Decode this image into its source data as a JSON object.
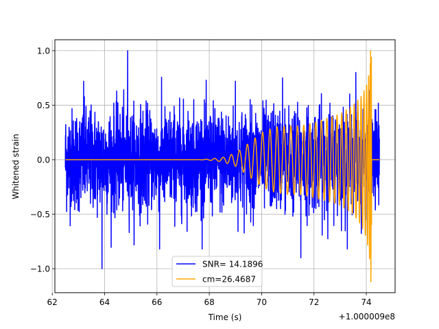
{
  "chart_data": {
    "type": "line",
    "xlabel": "Time (s)",
    "ylabel": "Whitened strain",
    "offset_label": "+1.000009e8",
    "xlim": [
      62.1,
      75.1
    ],
    "ylim": [
      -1.22,
      1.1
    ],
    "x_ticks": [
      62,
      64,
      66,
      68,
      70,
      72,
      74
    ],
    "x_tick_labels": [
      "62",
      "64",
      "66",
      "68",
      "70",
      "72",
      "74"
    ],
    "y_ticks": [
      -1.0,
      -0.5,
      0.0,
      0.5,
      1.0
    ],
    "y_tick_labels": [
      "−1.0",
      "−0.5",
      "0.0",
      "0.5",
      "1.0"
    ],
    "grid": true,
    "legend_position": "lower-center",
    "series": [
      {
        "name": "SNR= 14.1896",
        "color": "#0000ff",
        "x_range": [
          62.5,
          74.5
        ],
        "typical_amplitude": 0.55,
        "peak_max": 1.0,
        "peak_min": -1.0,
        "style": "whitened-noise"
      },
      {
        "name": "cm=26.4687",
        "color": "#ffa500",
        "x_range": [
          62.5,
          74.5
        ],
        "merger_time": 74.2,
        "peak_max": 1.0,
        "peak_min": -1.12,
        "envelope": {
          "x": [
            62.5,
            67.5,
            68.0,
            68.5,
            69.0,
            69.5,
            70.0,
            70.5,
            71.0,
            71.5,
            72.0,
            72.5,
            73.0,
            73.5,
            73.8,
            74.0,
            74.1,
            74.15,
            74.2
          ],
          "upper": [
            0.0,
            0.0,
            0.005,
            0.02,
            0.06,
            0.15,
            0.25,
            0.3,
            0.31,
            0.31,
            0.34,
            0.38,
            0.42,
            0.5,
            0.58,
            0.68,
            0.78,
            0.88,
            1.0
          ],
          "lower": [
            0.0,
            0.0,
            -0.005,
            -0.02,
            -0.06,
            -0.15,
            -0.25,
            -0.3,
            -0.32,
            -0.32,
            -0.35,
            -0.38,
            -0.42,
            -0.5,
            -0.6,
            -0.72,
            -0.85,
            -0.98,
            -1.12
          ]
        }
      }
    ]
  }
}
